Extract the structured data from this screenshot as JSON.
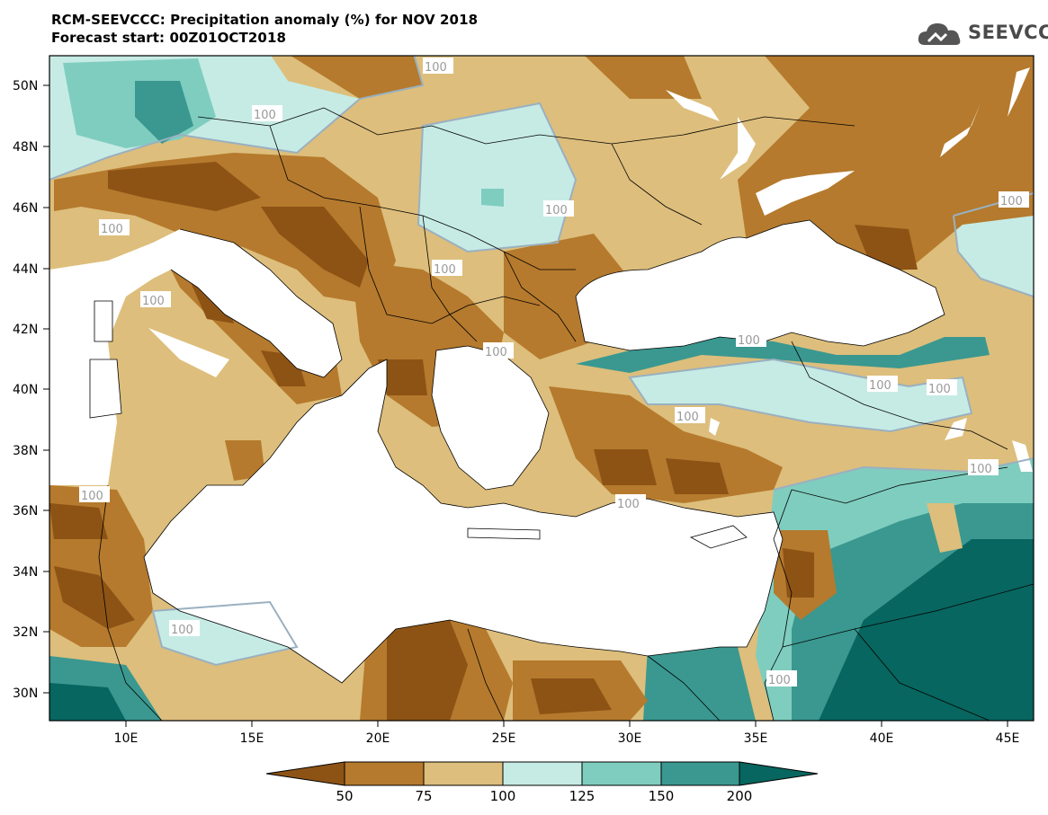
{
  "title_line1": "RCM-SEEVCCC: Precipitation anomaly (%) for NOV 2018",
  "title_line2": "Forecast start: 00Z01OCT2018",
  "logo_text": "SEEVCCC",
  "lat_labels": [
    "50N",
    "48N",
    "46N",
    "44N",
    "42N",
    "40N",
    "38N",
    "36N",
    "34N",
    "32N",
    "30N"
  ],
  "lon_labels": [
    "10E",
    "15E",
    "20E",
    "25E",
    "30E",
    "35E",
    "40E",
    "45E"
  ],
  "contour_labels": [
    "100",
    "100",
    "100",
    "100",
    "100",
    "100",
    "100",
    "100",
    "100",
    "100",
    "100",
    "100",
    "100",
    "100",
    "100",
    "100",
    "100"
  ],
  "colorbar": {
    "labels": [
      "50",
      "75",
      "100",
      "125",
      "150",
      "200"
    ],
    "colors": [
      "#8d5315",
      "#b57a2d",
      "#ddbe7c",
      "#c6ebe5",
      "#7fcdbf",
      "#3a9890",
      "#07665f"
    ]
  }
}
